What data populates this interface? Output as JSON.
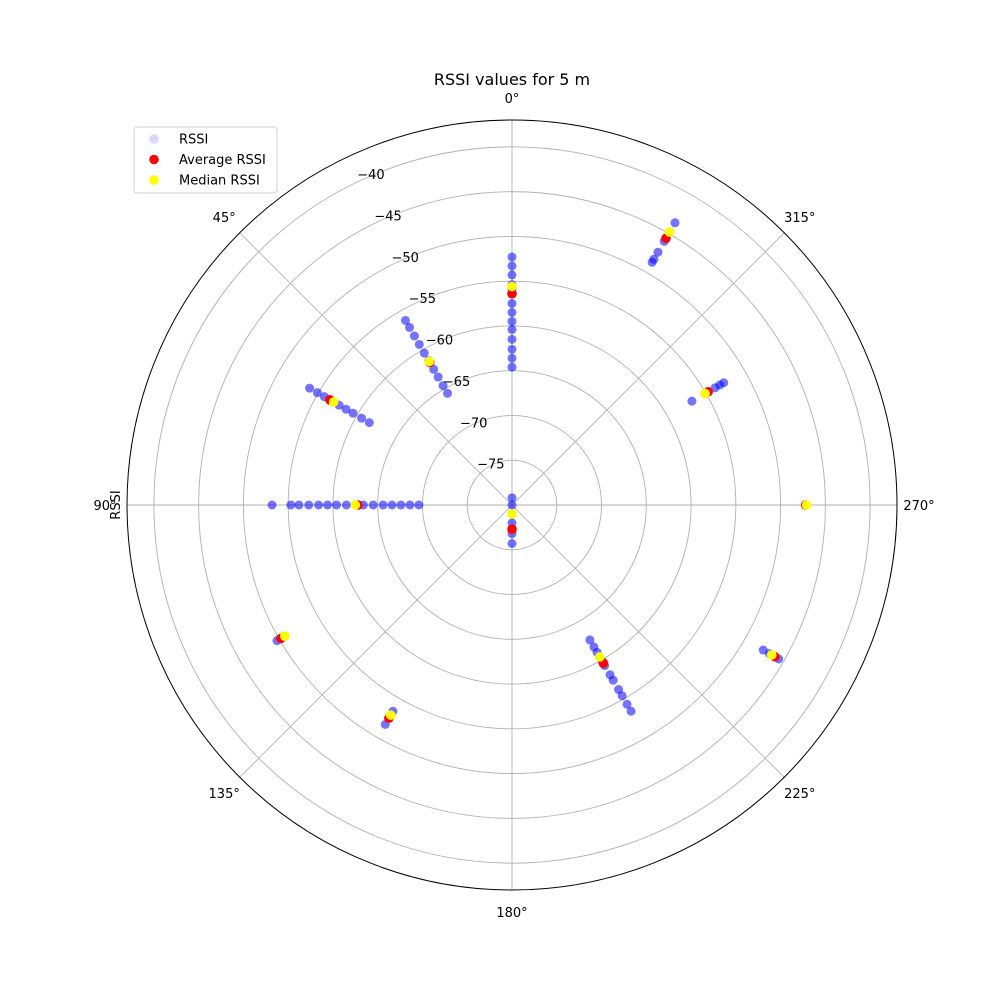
{
  "chart_data": {
    "type": "scatter",
    "projection": "polar",
    "title": "RSSI values for 5 m",
    "ylabel": "RSSI",
    "theta_zero_location": "top",
    "theta_direction": "counterclockwise",
    "r_range": [
      -80,
      -37
    ],
    "r_ticks": [
      -40,
      -45,
      -50,
      -55,
      -60,
      -65,
      -70,
      -75
    ],
    "r_tick_labels": [
      "−40",
      "−45",
      "−50",
      "−55",
      "−60",
      "−65",
      "−70",
      "−75"
    ],
    "theta_ticks": [
      0,
      45,
      90,
      135,
      180,
      225,
      270,
      315
    ],
    "theta_tick_labels": [
      "0°",
      "45°",
      "90°",
      "135°",
      "180°",
      "225°",
      "270°",
      "315°"
    ],
    "grid": true,
    "legend_position": "upper-left",
    "colors": {
      "rssi": "#0000ff",
      "average": "#ff0000",
      "median": "#ffff00",
      "grid": "#b0b0b0"
    },
    "series": [
      {
        "name": "RSSI",
        "points": [
          {
            "theta": 0,
            "r": [
              -52.3,
              -53.3,
              -54.3,
              -55.4,
              -55.9,
              -56.4,
              -57.5,
              -58.5,
              -59.5,
              -60.4,
              -61.5,
              -62.6,
              -63.6,
              -64.6
            ]
          },
          {
            "theta": 30,
            "r": [
              -56.2,
              -57.1,
              -58.2,
              -59.3,
              -60.4,
              -61.4,
              -62.5,
              -63.5,
              -64.6,
              -65.6
            ]
          },
          {
            "theta": 60,
            "r": [
              -53.9,
              -54.9,
              -55.8,
              -57.0,
              -57.7,
              -58.6,
              -59.5,
              -60.6,
              -61.6
            ]
          },
          {
            "theta": 90,
            "r": [
              -53.2,
              -55.3,
              -56.2,
              -57.3,
              -58.4,
              -59.4,
              -60.4,
              -61.5,
              -62.5,
              -63.4,
              -64.5,
              -65.6,
              -66.6,
              -67.6,
              -68.6,
              -69.6
            ]
          },
          {
            "theta": 120,
            "r": [
              -49.7,
              -50.7
            ]
          },
          {
            "theta": 150,
            "r": [
              -51.7,
              -52.9,
              -53.4
            ]
          },
          {
            "theta": 180,
            "r": [
              -75.7,
              -76.8,
              -78.0,
              -79.0,
              -80.0,
              -80.8
            ]
          },
          {
            "theta": 210,
            "r": [
              -53.4,
              -54.3,
              -55.4,
              -56.2,
              -57.4,
              -58.1,
              -59.3,
              -59.8,
              -61.0,
              -61.7,
              -62.6
            ]
          },
          {
            "theta": 240,
            "r": [
              -45.6,
              -46.2,
              -46.8,
              -47.6
            ]
          },
          {
            "theta": 270,
            "r": [
              -47.1
            ]
          },
          {
            "theta": 300,
            "r": [
              -52.7,
              -53.2,
              -53.8,
              -55.1,
              -56.8
            ]
          },
          {
            "theta": 330,
            "r": [
              -43.6,
              -44.8,
              -46.0,
              -47.4,
              -48.3,
              -48.7
            ]
          }
        ]
      },
      {
        "name": "Average RSSI",
        "points": [
          {
            "theta": 0,
            "r": -56.4
          },
          {
            "theta": 30,
            "r": -61.6
          },
          {
            "theta": 60,
            "r": -56.5
          },
          {
            "theta": 90,
            "r": -62.8
          },
          {
            "theta": 120,
            "r": -50.2
          },
          {
            "theta": 150,
            "r": -52.5
          },
          {
            "theta": 180,
            "r": -77.3
          },
          {
            "theta": 210,
            "r": -59.6
          },
          {
            "theta": 240,
            "r": -46.1
          },
          {
            "theta": 270,
            "r": -47.2
          },
          {
            "theta": 300,
            "r": -54.7
          },
          {
            "theta": 330,
            "r": -45.6
          }
        ]
      },
      {
        "name": "Median RSSI",
        "points": [
          {
            "theta": 0,
            "r": -55.6
          },
          {
            "theta": 30,
            "r": -61.5
          },
          {
            "theta": 60,
            "r": -57.0
          },
          {
            "theta": 90,
            "r": -62.5
          },
          {
            "theta": 120,
            "r": -50.7
          },
          {
            "theta": 150,
            "r": -52.9
          },
          {
            "theta": 180,
            "r": -79.0
          },
          {
            "theta": 210,
            "r": -60.4
          },
          {
            "theta": 240,
            "r": -46.5
          },
          {
            "theta": 270,
            "r": -47.1
          },
          {
            "theta": 300,
            "r": -55.1
          },
          {
            "theta": 330,
            "r": -44.8
          }
        ]
      }
    ]
  }
}
